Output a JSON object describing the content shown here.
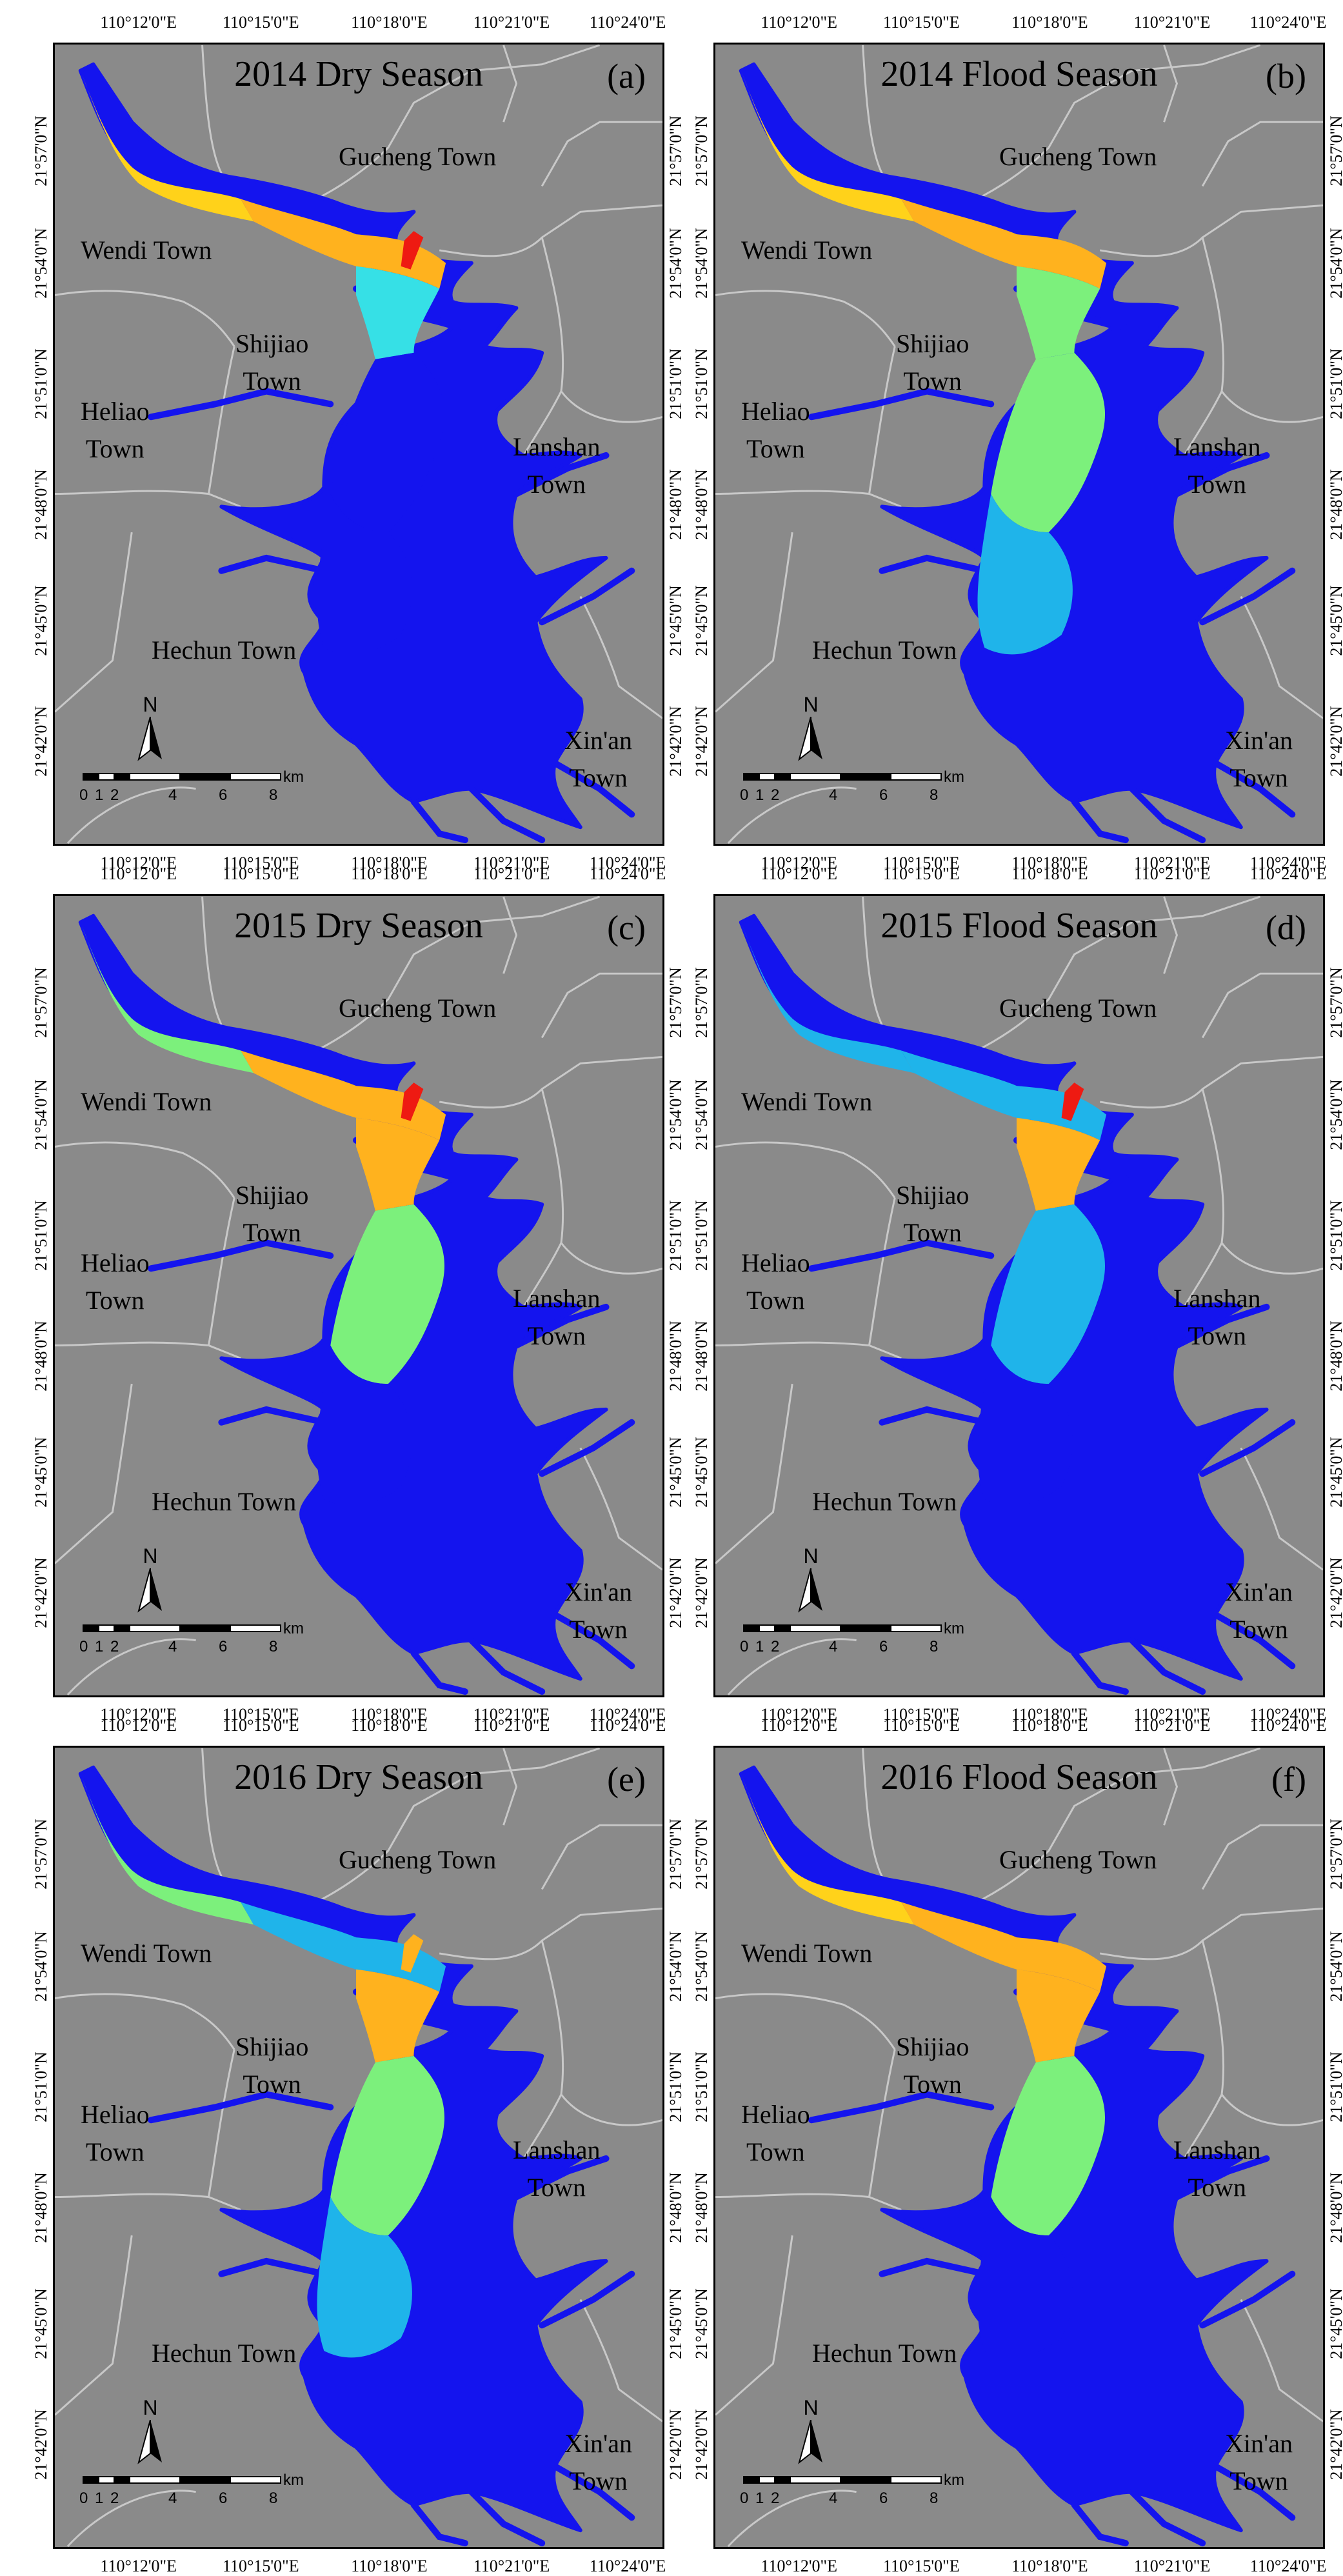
{
  "figure": {
    "panels": [
      {
        "title": "2014 Dry Season",
        "letter": "(a)",
        "variant": "dry2014"
      },
      {
        "title": "2014 Flood Season",
        "letter": "(b)",
        "variant": "flood2014"
      },
      {
        "title": "2015 Dry Season",
        "letter": "(c)",
        "variant": "dry2015"
      },
      {
        "title": "2015 Flood Season",
        "letter": "(d)",
        "variant": "flood2015"
      },
      {
        "title": "2016 Dry Season",
        "letter": "(e)",
        "variant": "dry2016"
      },
      {
        "title": "2016 Flood Season",
        "letter": "(f)",
        "variant": "flood2016"
      }
    ],
    "towns": {
      "gucheng": "Gucheng Town",
      "wendi": "Wendi Town",
      "shijiao_1": "Shijiao",
      "shijiao_2": "Town",
      "heliao_1": "Heliao",
      "heliao_2": "Town",
      "lanshan_1": "Lanshan",
      "lanshan_2": "Town",
      "hechun": "Hechun Town",
      "xinan_1": "Xin'an",
      "xinan_2": "Town"
    },
    "lon_ticks": [
      "110°12'0\"E",
      "110°15'0\"E",
      "110°18'0\"E",
      "110°21'0\"E",
      "110°24'0\"E"
    ],
    "lat_ticks": [
      "21°57'0\"N",
      "21°54'0\"N",
      "21°51'0\"N",
      "21°48'0\"N",
      "21°45'0\"N",
      "21°42'0\"N"
    ],
    "scale": {
      "labels": [
        "0",
        "1",
        "2",
        "4",
        "6",
        "8"
      ],
      "unit": "km"
    },
    "north_label": "N",
    "colors": {
      "background": "#8a8a8a",
      "boundary": "#c8c8c8",
      "deep_blue": "#1414ee",
      "light_blue": "#1fb4ea",
      "cyan": "#36e0e6",
      "green": "#7cf07c",
      "yellow": "#ffd21a",
      "orange": "#ffb21e",
      "red": "#ee1a12"
    }
  }
}
